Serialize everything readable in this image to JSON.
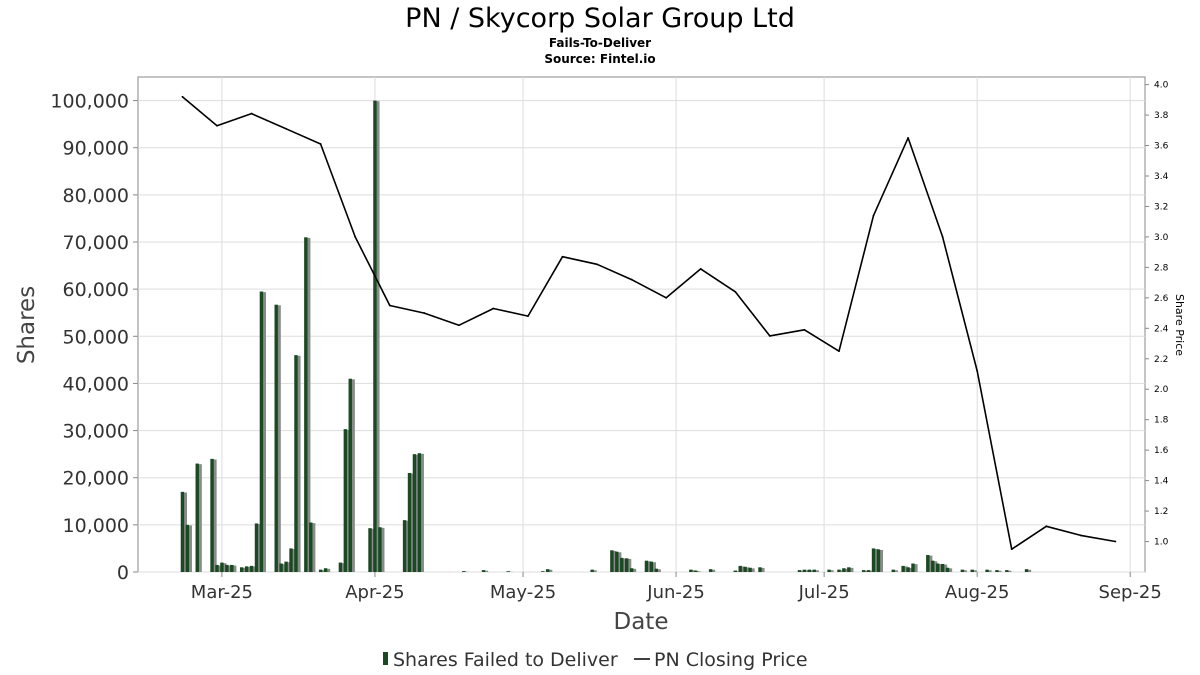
{
  "chart_data": {
    "type": "bar",
    "title": "PN / Skycorp Solar Group Ltd",
    "subtitle": "Fails-To-Deliver",
    "source": "Source: Fintel.io",
    "xlabel": "Date",
    "ylabel": "Shares",
    "y2label": "Share Price",
    "ylim": [
      0,
      105000
    ],
    "y2lim": [
      0.8,
      4.05
    ],
    "xlim": [
      "2025-02-12",
      "2025-09-04"
    ],
    "grid": true,
    "legend_position": "bottom",
    "colors": {
      "bar": "#1a4a22",
      "bar_shadow": "#8a8a8a",
      "line": "#000000",
      "grid": "#dddddd"
    },
    "x_ticks": [
      {
        "date": "2025-03-01",
        "label": "Mar-25"
      },
      {
        "date": "2025-04-01",
        "label": "Apr-25"
      },
      {
        "date": "2025-05-01",
        "label": "May-25"
      },
      {
        "date": "2025-06-01",
        "label": "Jun-25"
      },
      {
        "date": "2025-07-01",
        "label": "Jul-25"
      },
      {
        "date": "2025-08-01",
        "label": "Aug-25"
      },
      {
        "date": "2025-09-01",
        "label": "Sep-25"
      }
    ],
    "y_ticks": [
      "0",
      "10,000",
      "20,000",
      "30,000",
      "40,000",
      "50,000",
      "60,000",
      "70,000",
      "80,000",
      "90,000",
      "100,000"
    ],
    "y2_ticks": [
      "1.0",
      "1.2",
      "1.4",
      "1.6",
      "1.8",
      "2.0",
      "2.2",
      "2.4",
      "2.6",
      "2.8",
      "3.0",
      "3.2",
      "3.4",
      "3.6",
      "3.8",
      "4.0"
    ],
    "series": [
      {
        "name": "Shares Failed to Deliver",
        "type": "bar",
        "axis": "left",
        "points": [
          {
            "date": "2025-02-21",
            "value": 17000
          },
          {
            "date": "2025-02-22",
            "value": 10000
          },
          {
            "date": "2025-02-24",
            "value": 23000
          },
          {
            "date": "2025-02-27",
            "value": 24000
          },
          {
            "date": "2025-02-28",
            "value": 1500
          },
          {
            "date": "2025-03-01",
            "value": 2000
          },
          {
            "date": "2025-03-02",
            "value": 1500
          },
          {
            "date": "2025-03-03",
            "value": 1500
          },
          {
            "date": "2025-03-05",
            "value": 1000
          },
          {
            "date": "2025-03-06",
            "value": 1200
          },
          {
            "date": "2025-03-07",
            "value": 1300
          },
          {
            "date": "2025-03-08",
            "value": 10300
          },
          {
            "date": "2025-03-09",
            "value": 59500
          },
          {
            "date": "2025-03-12",
            "value": 56700
          },
          {
            "date": "2025-03-13",
            "value": 1800
          },
          {
            "date": "2025-03-14",
            "value": 2200
          },
          {
            "date": "2025-03-15",
            "value": 5000
          },
          {
            "date": "2025-03-16",
            "value": 46000
          },
          {
            "date": "2025-03-18",
            "value": 71000
          },
          {
            "date": "2025-03-19",
            "value": 10500
          },
          {
            "date": "2025-03-21",
            "value": 500
          },
          {
            "date": "2025-03-22",
            "value": 800
          },
          {
            "date": "2025-03-25",
            "value": 2000
          },
          {
            "date": "2025-03-26",
            "value": 30300
          },
          {
            "date": "2025-03-27",
            "value": 41000
          },
          {
            "date": "2025-03-31",
            "value": 9300
          },
          {
            "date": "2025-04-01",
            "value": 100000
          },
          {
            "date": "2025-04-02",
            "value": 9500
          },
          {
            "date": "2025-04-07",
            "value": 11000
          },
          {
            "date": "2025-04-08",
            "value": 21000
          },
          {
            "date": "2025-04-09",
            "value": 25000
          },
          {
            "date": "2025-04-10",
            "value": 25200
          },
          {
            "date": "2025-04-19",
            "value": 200
          },
          {
            "date": "2025-04-23",
            "value": 400
          },
          {
            "date": "2025-04-28",
            "value": 100
          },
          {
            "date": "2025-05-05",
            "value": 100
          },
          {
            "date": "2025-05-06",
            "value": 600
          },
          {
            "date": "2025-05-15",
            "value": 500
          },
          {
            "date": "2025-05-19",
            "value": 4600
          },
          {
            "date": "2025-05-20",
            "value": 4300
          },
          {
            "date": "2025-05-21",
            "value": 3000
          },
          {
            "date": "2025-05-22",
            "value": 2900
          },
          {
            "date": "2025-05-23",
            "value": 800
          },
          {
            "date": "2025-05-26",
            "value": 2400
          },
          {
            "date": "2025-05-27",
            "value": 2200
          },
          {
            "date": "2025-05-28",
            "value": 700
          },
          {
            "date": "2025-06-04",
            "value": 500
          },
          {
            "date": "2025-06-05",
            "value": 300
          },
          {
            "date": "2025-06-08",
            "value": 600
          },
          {
            "date": "2025-06-13",
            "value": 300
          },
          {
            "date": "2025-06-14",
            "value": 1300
          },
          {
            "date": "2025-06-15",
            "value": 1100
          },
          {
            "date": "2025-06-16",
            "value": 900
          },
          {
            "date": "2025-06-18",
            "value": 1000
          },
          {
            "date": "2025-06-26",
            "value": 400
          },
          {
            "date": "2025-06-27",
            "value": 500
          },
          {
            "date": "2025-06-28",
            "value": 500
          },
          {
            "date": "2025-06-29",
            "value": 500
          },
          {
            "date": "2025-07-02",
            "value": 500
          },
          {
            "date": "2025-07-04",
            "value": 500
          },
          {
            "date": "2025-07-05",
            "value": 800
          },
          {
            "date": "2025-07-06",
            "value": 1000
          },
          {
            "date": "2025-07-09",
            "value": 400
          },
          {
            "date": "2025-07-10",
            "value": 400
          },
          {
            "date": "2025-07-11",
            "value": 5000
          },
          {
            "date": "2025-07-12",
            "value": 4800
          },
          {
            "date": "2025-07-15",
            "value": 500
          },
          {
            "date": "2025-07-17",
            "value": 1300
          },
          {
            "date": "2025-07-18",
            "value": 1000
          },
          {
            "date": "2025-07-19",
            "value": 1800
          },
          {
            "date": "2025-07-22",
            "value": 3600
          },
          {
            "date": "2025-07-23",
            "value": 2400
          },
          {
            "date": "2025-07-24",
            "value": 1800
          },
          {
            "date": "2025-07-25",
            "value": 1700
          },
          {
            "date": "2025-07-26",
            "value": 900
          },
          {
            "date": "2025-07-29",
            "value": 500
          },
          {
            "date": "2025-07-31",
            "value": 500
          },
          {
            "date": "2025-08-03",
            "value": 500
          },
          {
            "date": "2025-08-05",
            "value": 400
          },
          {
            "date": "2025-08-07",
            "value": 400
          },
          {
            "date": "2025-08-11",
            "value": 600
          }
        ]
      },
      {
        "name": "PN Closing Price",
        "type": "line",
        "axis": "right",
        "points": [
          {
            "date": "2025-02-21",
            "value": 3.92
          },
          {
            "date": "2025-02-28",
            "value": 3.73
          },
          {
            "date": "2025-03-07",
            "value": 3.81
          },
          {
            "date": "2025-03-14",
            "value": 3.71
          },
          {
            "date": "2025-03-21",
            "value": 3.61
          },
          {
            "date": "2025-03-28",
            "value": 3.0
          },
          {
            "date": "2025-04-04",
            "value": 2.55
          },
          {
            "date": "2025-04-11",
            "value": 2.5
          },
          {
            "date": "2025-04-18",
            "value": 2.42
          },
          {
            "date": "2025-04-25",
            "value": 2.53
          },
          {
            "date": "2025-05-02",
            "value": 2.48
          },
          {
            "date": "2025-05-09",
            "value": 2.87
          },
          {
            "date": "2025-05-16",
            "value": 2.82
          },
          {
            "date": "2025-05-23",
            "value": 2.72
          },
          {
            "date": "2025-05-30",
            "value": 2.6
          },
          {
            "date": "2025-06-06",
            "value": 2.79
          },
          {
            "date": "2025-06-13",
            "value": 2.64
          },
          {
            "date": "2025-06-20",
            "value": 2.35
          },
          {
            "date": "2025-06-27",
            "value": 2.39
          },
          {
            "date": "2025-07-04",
            "value": 2.25
          },
          {
            "date": "2025-07-11",
            "value": 3.14
          },
          {
            "date": "2025-07-18",
            "value": 3.65
          },
          {
            "date": "2025-07-25",
            "value": 3.0
          },
          {
            "date": "2025-08-01",
            "value": 2.12
          },
          {
            "date": "2025-08-08",
            "value": 0.95
          },
          {
            "date": "2025-08-15",
            "value": 1.1
          },
          {
            "date": "2025-08-22",
            "value": 1.04
          },
          {
            "date": "2025-08-29",
            "value": 1.0
          }
        ]
      }
    ]
  }
}
